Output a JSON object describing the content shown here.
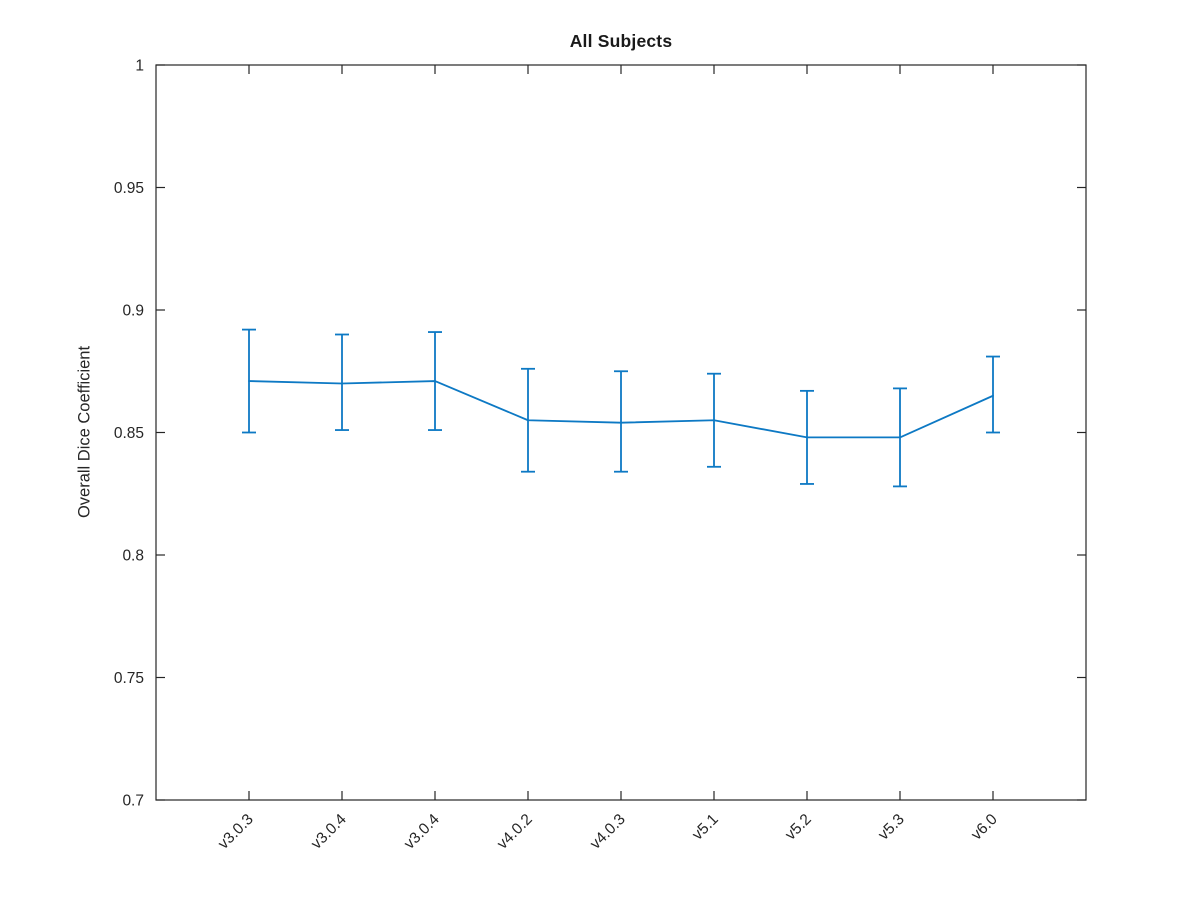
{
  "figure": {
    "background": "#ffffff",
    "axis_color": "#262626",
    "series_color": "#0d79c4"
  },
  "chart_data": {
    "type": "line",
    "title": "All Subjects",
    "xlabel": "",
    "ylabel": "Overall Dice Coefficient",
    "categories": [
      "v3.0.3",
      "v3.0.4",
      "v3.0.4",
      "v4.0.2",
      "v4.0.3",
      "v5.1",
      "v5.2",
      "v5.3",
      "v6.0"
    ],
    "series": [
      {
        "name": "Overall Dice Coefficient",
        "values": [
          0.871,
          0.87,
          0.871,
          0.855,
          0.854,
          0.855,
          0.848,
          0.848,
          0.865
        ],
        "upper": [
          0.892,
          0.89,
          0.891,
          0.876,
          0.875,
          0.874,
          0.867,
          0.868,
          0.881
        ],
        "lower": [
          0.85,
          0.851,
          0.851,
          0.834,
          0.834,
          0.836,
          0.829,
          0.828,
          0.85
        ],
        "error_bars": true,
        "marker": "none"
      }
    ],
    "ylim": [
      0.7,
      1.0
    ],
    "xlim_units": [
      0,
      10
    ],
    "yticks": [
      0.7,
      0.75,
      0.8,
      0.85,
      0.9,
      0.95,
      1
    ],
    "ytick_labels": [
      "0.7",
      "0.75",
      "0.8",
      "0.85",
      "0.9",
      "0.95",
      "1"
    ],
    "x_tick_rotation_deg": 45,
    "grid": false,
    "legend_position": "none",
    "box": true,
    "tick_direction": "in"
  }
}
